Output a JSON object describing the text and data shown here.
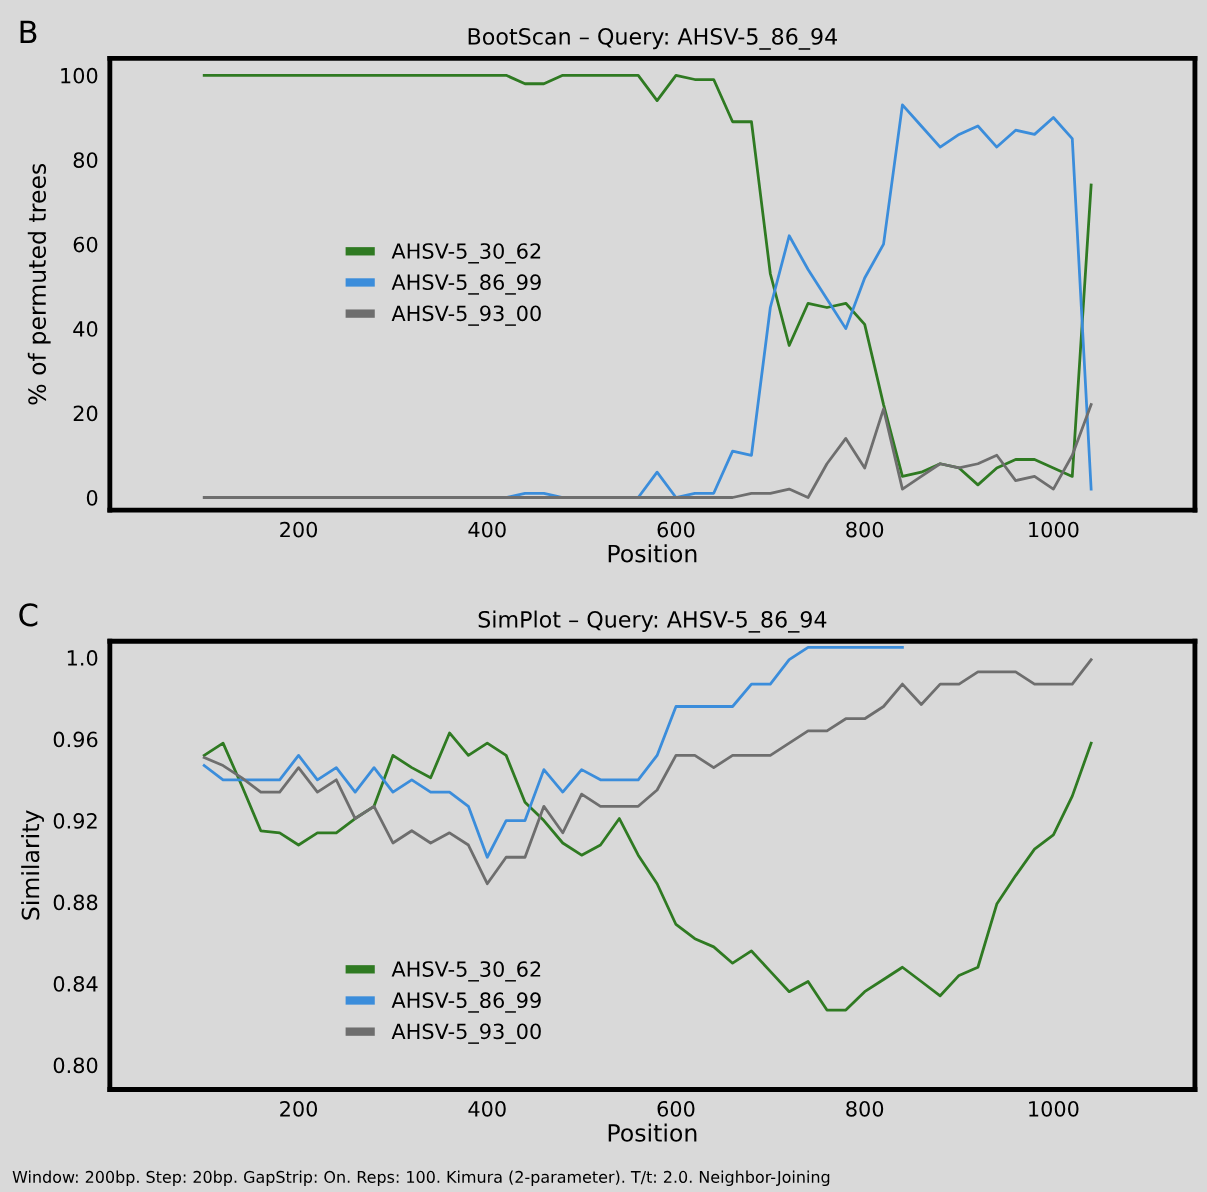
{
  "chart_data": [
    {
      "type": "line",
      "title": "BootScan – Query: AHSV-5_86_94",
      "xlabel": "Position",
      "ylabel": "% of permuted trees",
      "annotations": [
        "B"
      ],
      "x": [
        100,
        120,
        140,
        160,
        180,
        200,
        220,
        240,
        260,
        280,
        300,
        320,
        340,
        360,
        380,
        400,
        420,
        440,
        460,
        480,
        500,
        520,
        540,
        560,
        580,
        600,
        620,
        640,
        660,
        680,
        700,
        720,
        740,
        760,
        780,
        800,
        820,
        840,
        860,
        880,
        900,
        920,
        940,
        960,
        980,
        1000,
        1020,
        1040
      ],
      "xlim": [
        0,
        1150
      ],
      "xticks": [
        200,
        400,
        600,
        800,
        1000
      ],
      "ylim": [
        -3,
        104
      ],
      "yticks": [
        0,
        20,
        40,
        60,
        80,
        100
      ],
      "grid": false,
      "legend": "left",
      "series": [
        {
          "name": "AHSV-5_30_62",
          "color": "#2f7a22",
          "values": [
            100,
            100,
            100,
            100,
            100,
            100,
            100,
            100,
            100,
            100,
            100,
            100,
            100,
            100,
            100,
            100,
            100,
            98,
            98,
            100,
            100,
            100,
            100,
            100,
            94,
            100,
            99,
            99,
            89,
            89,
            53,
            36,
            46,
            45,
            46,
            41,
            22,
            5,
            6,
            8,
            7,
            3,
            7,
            9,
            9,
            7,
            5,
            74
          ]
        },
        {
          "name": "AHSV-5_86_99",
          "color": "#3b8ddb",
          "values": [
            null,
            null,
            null,
            null,
            null,
            null,
            null,
            null,
            null,
            null,
            null,
            null,
            null,
            null,
            null,
            0,
            0,
            1,
            1,
            0,
            0,
            0,
            0,
            0,
            6,
            0,
            1,
            1,
            11,
            10,
            45,
            62,
            54,
            47,
            40,
            52,
            60,
            93,
            88,
            83,
            86,
            88,
            83,
            87,
            86,
            90,
            85,
            2
          ]
        },
        {
          "name": "AHSV-5_93_00",
          "color": "#6e6e6e",
          "values": [
            0,
            0,
            0,
            0,
            0,
            0,
            0,
            0,
            0,
            0,
            0,
            0,
            0,
            0,
            0,
            0,
            0,
            0,
            0,
            0,
            0,
            0,
            0,
            0,
            0,
            0,
            0,
            0,
            0,
            1,
            1,
            2,
            0,
            8,
            14,
            7,
            21,
            2,
            5,
            8,
            7,
            8,
            10,
            4,
            5,
            2,
            10,
            22
          ]
        }
      ]
    },
    {
      "type": "line",
      "title": "SimPlot – Query: AHSV-5_86_94",
      "xlabel": "Position",
      "ylabel": "Similarity",
      "annotations": [
        "C",
        "Window: 200bp. Step: 20bp. GapStrip: On. Reps: 100. Kimura (2-parameter). T/t: 2.0. Neighbor-Joining"
      ],
      "x": [
        100,
        120,
        140,
        160,
        180,
        200,
        220,
        240,
        260,
        280,
        300,
        320,
        340,
        360,
        380,
        400,
        420,
        440,
        460,
        480,
        500,
        520,
        540,
        560,
        580,
        600,
        620,
        640,
        660,
        680,
        700,
        720,
        740,
        760,
        780,
        800,
        820,
        840,
        860,
        880,
        900,
        920,
        940,
        960,
        980,
        1000,
        1020,
        1040
      ],
      "xlim": [
        0,
        1150
      ],
      "xticks": [
        200,
        400,
        600,
        800,
        1000
      ],
      "ylim": [
        0.788,
        1.008
      ],
      "yticks": [
        {
          "value": 0.8,
          "label": "0.80"
        },
        0.84,
        0.88,
        0.92,
        0.96,
        {
          "value": 1.0,
          "label": "1.0"
        }
      ],
      "grid": false,
      "legend": "bottom left",
      "series": [
        {
          "name": "AHSV-5_30_62",
          "color": "#2f7a22",
          "values": [
            0.952,
            0.958,
            0.937,
            0.915,
            0.914,
            0.908,
            0.914,
            0.914,
            0.921,
            0.927,
            0.952,
            0.946,
            0.941,
            0.963,
            0.952,
            0.958,
            0.952,
            0.929,
            0.92,
            0.909,
            0.903,
            0.908,
            0.921,
            0.903,
            0.889,
            0.869,
            0.862,
            0.858,
            0.85,
            0.856,
            0.846,
            0.836,
            0.841,
            0.827,
            0.827,
            0.836,
            0.842,
            0.848,
            0.841,
            0.834,
            0.844,
            0.848,
            0.879,
            0.893,
            0.906,
            0.913,
            0.932,
            0.958
          ]
        },
        {
          "name": "AHSV-5_86_99",
          "color": "#3b8ddb",
          "values": [
            0.947,
            0.94,
            0.94,
            0.94,
            0.94,
            0.952,
            0.94,
            0.946,
            0.934,
            0.946,
            0.934,
            0.94,
            0.934,
            0.934,
            0.927,
            0.902,
            0.92,
            0.92,
            0.945,
            0.934,
            0.945,
            0.94,
            0.94,
            0.94,
            0.952,
            0.976,
            0.976,
            0.976,
            0.976,
            0.987,
            0.987,
            0.999,
            1.005,
            1.005,
            1.005,
            1.005,
            1.005,
            1.005,
            null,
            null,
            null,
            null,
            null,
            null,
            null,
            null,
            null,
            null
          ]
        },
        {
          "name": "AHSV-5_93_00",
          "color": "#6e6e6e",
          "values": [
            0.951,
            0.947,
            0.941,
            0.934,
            0.934,
            0.946,
            0.934,
            0.94,
            0.921,
            0.927,
            0.909,
            0.915,
            0.909,
            0.914,
            0.908,
            0.889,
            0.902,
            0.902,
            0.927,
            0.914,
            0.933,
            0.927,
            0.927,
            0.927,
            0.935,
            0.952,
            0.952,
            0.946,
            0.952,
            0.952,
            0.952,
            0.958,
            0.964,
            0.964,
            0.97,
            0.97,
            0.976,
            0.987,
            0.977,
            0.987,
            0.987,
            0.993,
            0.993,
            0.993,
            0.987,
            0.987,
            0.987,
            0.999
          ]
        }
      ]
    }
  ]
}
